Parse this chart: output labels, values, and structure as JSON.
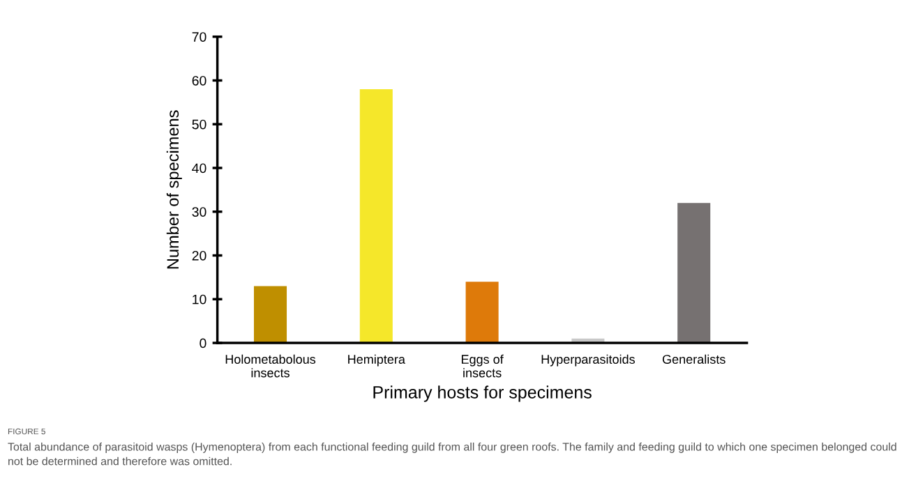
{
  "chart_data": {
    "type": "bar",
    "categories": [
      "Holometabolous\ninsects",
      "Hemiptera",
      "Eggs of\ninsects",
      "Hyperparasitoids",
      "Generalists"
    ],
    "values": [
      13,
      58,
      14,
      1,
      32
    ],
    "colors": [
      "#bf8f00",
      "#f5e72a",
      "#de7a0a",
      "#c8c8c8",
      "#767171"
    ],
    "xlabel": "Primary hosts for specimens",
    "ylabel": "Number of specimens",
    "ylim": [
      0,
      70
    ],
    "yticks": [
      0,
      10,
      20,
      30,
      40,
      50,
      60,
      70
    ],
    "grid": false,
    "legend": false,
    "annotations": [
      "FIGURE 5",
      "Total abundance of parasitoid wasps (Hymenoptera) from each functional feeding guild from all four green roofs. The family and feeding guild to which one specimen belonged could not be determined and therefore was omitted."
    ]
  }
}
